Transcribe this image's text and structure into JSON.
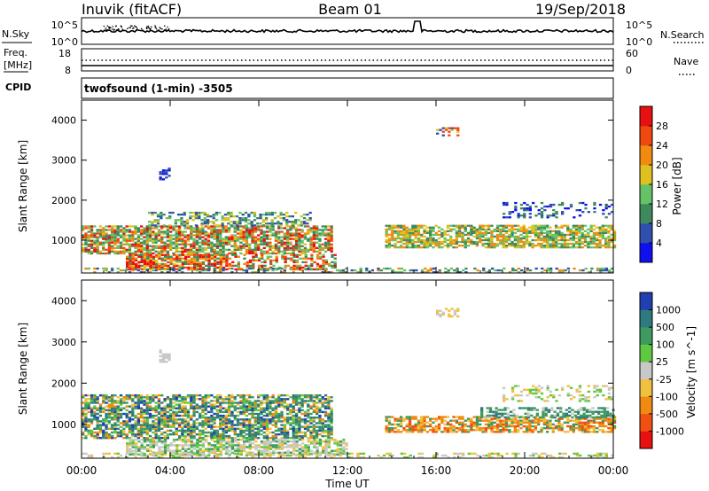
{
  "header": {
    "site": "Inuvik (fitACF)",
    "beam": "Beam 01",
    "date": "19/Sep/2018"
  },
  "sky_panel": {
    "left_label": "N.Sky",
    "right_label": "N.Search",
    "left_ticks": [
      "10^5",
      "10^0"
    ],
    "right_ticks": [
      "10^5",
      "10^0"
    ]
  },
  "freq_panel": {
    "left_label_1": "Freq.",
    "left_label_2": "[MHz]",
    "right_label": "Nave",
    "left_ticks": [
      "18",
      "8"
    ],
    "right_ticks": [
      "60",
      "0"
    ]
  },
  "cpid": {
    "label": "CPID",
    "value": "twofsound (1-min) -3505"
  },
  "xaxis": {
    "label": "Time UT",
    "ticks": [
      "00:00",
      "04:00",
      "08:00",
      "12:00",
      "16:00",
      "20:00",
      "00:00"
    ]
  },
  "power_colorbar": {
    "label": "Power [dB]",
    "ticks": [
      "4",
      "8",
      "12",
      "16",
      "20",
      "24",
      "28"
    ],
    "colors": [
      "#1010ee",
      "#3050b0",
      "#3f8a5c",
      "#66c266",
      "#e0c020",
      "#f08a10",
      "#f04810",
      "#e81010"
    ]
  },
  "velocity_colorbar": {
    "label": "Velocity [m s^-1]",
    "ticks": [
      "1000",
      "500",
      "100",
      "25",
      "-25",
      "-100",
      "-500",
      "-1000"
    ],
    "colors": [
      "#2040b0",
      "#2f7a80",
      "#3f9a60",
      "#60c840",
      "#c8c8c8",
      "#f0c040",
      "#f08a10",
      "#f05010",
      "#e81010"
    ]
  },
  "chart_data": [
    {
      "type": "heatmap",
      "title": "",
      "xlabel": "Time UT",
      "ylabel": "Slant Range [km]",
      "ylim": [
        180,
        4500
      ],
      "yticks": [
        1000,
        2000,
        3000,
        4000
      ],
      "xlim_hours": [
        0,
        24
      ],
      "colorbar": "Power [dB]",
      "bands": [
        {
          "t0": 0.0,
          "t1": 11.3,
          "r0": 650,
          "r1": 1350,
          "level": "moderate-high"
        },
        {
          "t0": 2.0,
          "t1": 6.5,
          "r0": 200,
          "r1": 700,
          "level": "high"
        },
        {
          "t0": 3.0,
          "t1": 10.3,
          "r0": 1350,
          "r1": 1700,
          "level": "low-moderate"
        },
        {
          "t0": 13.7,
          "t1": 24.0,
          "r0": 800,
          "r1": 1350,
          "level": "moderate"
        },
        {
          "t0": 16.0,
          "t1": 17.0,
          "r0": 3600,
          "r1": 3800,
          "level": "moderate"
        }
      ]
    },
    {
      "type": "heatmap",
      "title": "",
      "xlabel": "Time UT",
      "ylabel": "Slant Range [km]",
      "ylim": [
        180,
        4500
      ],
      "yticks": [
        1000,
        2000,
        3000,
        4000
      ],
      "xlim_hours": [
        0,
        24
      ],
      "colorbar": "Velocity [m s^-1]",
      "bands": [
        {
          "t0": 0.0,
          "t1": 11.3,
          "r0": 650,
          "r1": 1700,
          "level": "positive 100-500"
        },
        {
          "t0": 2.0,
          "t1": 12.0,
          "r0": 200,
          "r1": 700,
          "level": "near zero / gray"
        },
        {
          "t0": 13.7,
          "t1": 24.0,
          "r0": 800,
          "r1": 1350,
          "level": "negative -100 to -500"
        },
        {
          "t0": 18.0,
          "t1": 24.0,
          "r0": 1150,
          "r1": 1400,
          "level": "positive 100"
        }
      ]
    }
  ]
}
